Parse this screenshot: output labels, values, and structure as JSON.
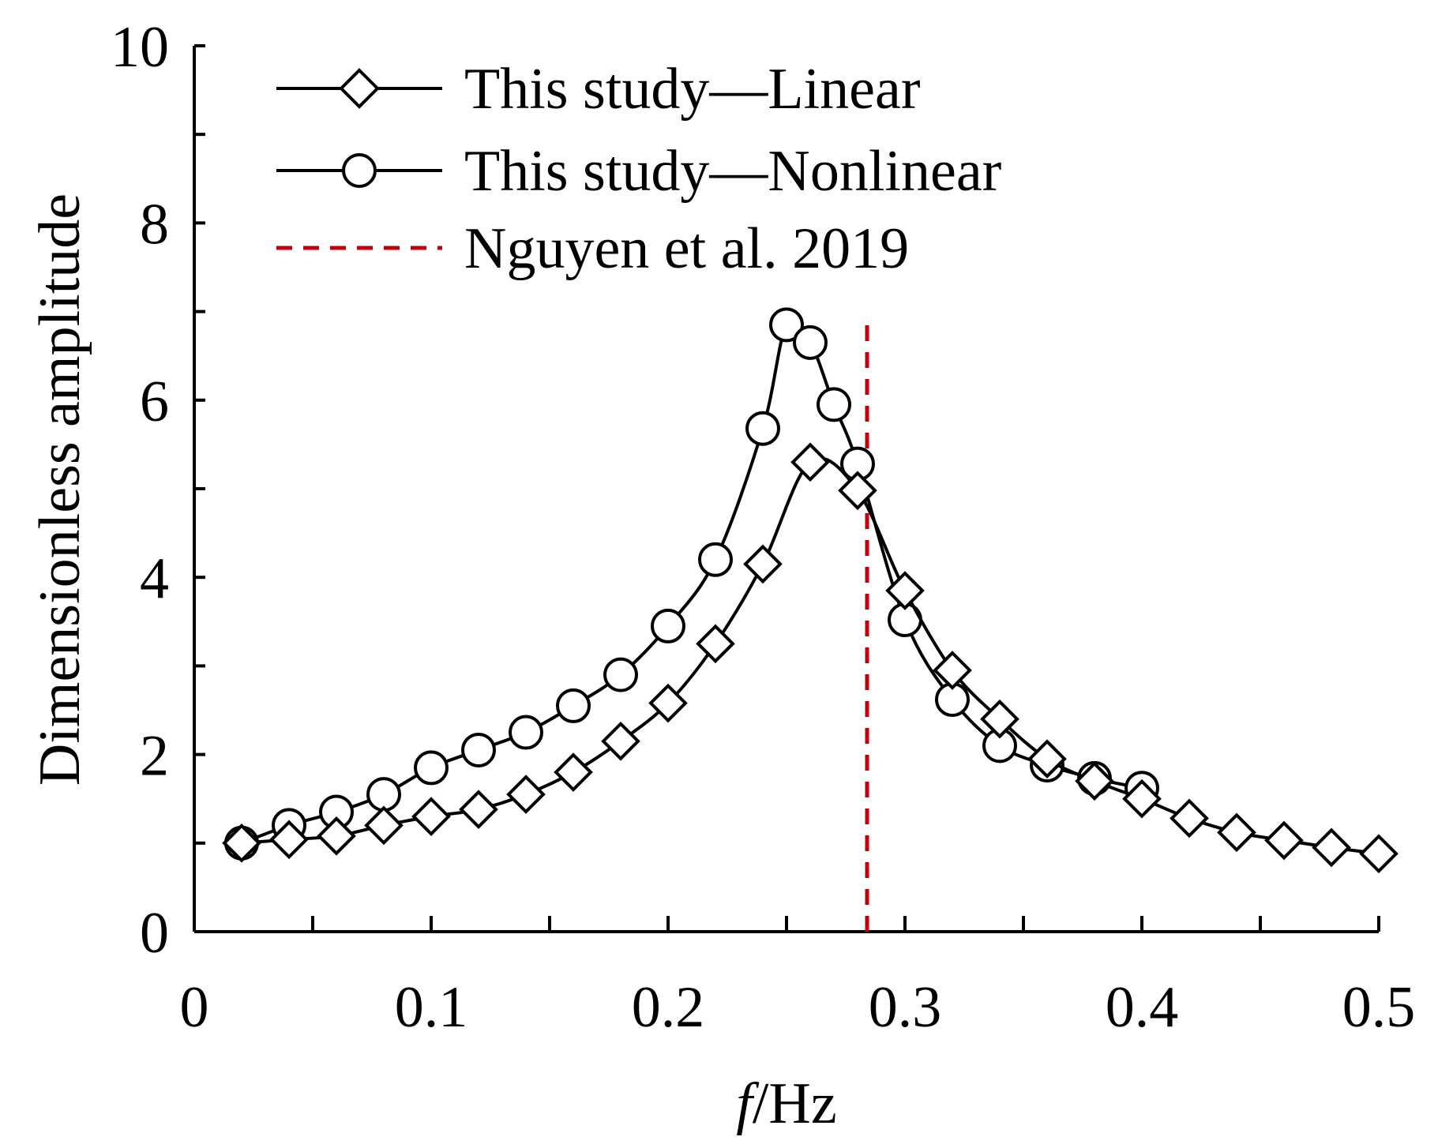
{
  "chart_data": {
    "type": "line",
    "title": "",
    "xlabel_italic": "f",
    "xlabel_unit": "/Hz",
    "ylabel": "Dimensionless amplitude",
    "xlim": [
      0,
      0.5
    ],
    "ylim": [
      0,
      10
    ],
    "grid": false,
    "legend_position": "top-left",
    "x_ticks": [
      0,
      0.1,
      0.2,
      0.3,
      0.4,
      0.5
    ],
    "x_tick_labels": [
      "0",
      "0.1",
      "0.2",
      "0.3",
      "0.4",
      "0.5"
    ],
    "y_ticks": [
      0,
      2,
      4,
      6,
      8,
      10
    ],
    "y_tick_labels": [
      "0",
      "2",
      "4",
      "6",
      "8",
      "10"
    ],
    "series": [
      {
        "name": "This study—Linear",
        "marker": "diamond",
        "color": "#000000",
        "x": [
          0.02,
          0.04,
          0.06,
          0.08,
          0.1,
          0.12,
          0.14,
          0.16,
          0.18,
          0.2,
          0.22,
          0.24,
          0.26,
          0.28,
          0.3,
          0.32,
          0.34,
          0.36,
          0.38,
          0.4,
          0.42,
          0.44,
          0.46,
          0.48,
          0.5
        ],
        "y": [
          1.0,
          1.04,
          1.08,
          1.2,
          1.3,
          1.38,
          1.55,
          1.8,
          2.15,
          2.58,
          3.25,
          4.15,
          5.3,
          4.98,
          3.85,
          2.95,
          2.4,
          1.95,
          1.7,
          1.5,
          1.28,
          1.12,
          1.03,
          0.95,
          0.88
        ]
      },
      {
        "name": "This study—Nonlinear",
        "marker": "circle",
        "color": "#000000",
        "x": [
          0.02,
          0.04,
          0.06,
          0.08,
          0.1,
          0.12,
          0.14,
          0.16,
          0.18,
          0.2,
          0.22,
          0.24,
          0.25,
          0.26,
          0.27,
          0.28,
          0.3,
          0.32,
          0.34,
          0.36,
          0.38,
          0.4
        ],
        "y": [
          1.0,
          1.2,
          1.35,
          1.55,
          1.85,
          2.05,
          2.25,
          2.55,
          2.9,
          3.45,
          4.2,
          5.68,
          6.85,
          6.65,
          5.95,
          5.28,
          3.52,
          2.62,
          2.1,
          1.88,
          1.73,
          1.62
        ]
      },
      {
        "name": "Nguyen et al. 2019",
        "type": "vertical-line",
        "style": "dashed",
        "color": "#c0000f",
        "x": 0.284,
        "y_range": [
          0,
          6.85
        ]
      }
    ]
  }
}
